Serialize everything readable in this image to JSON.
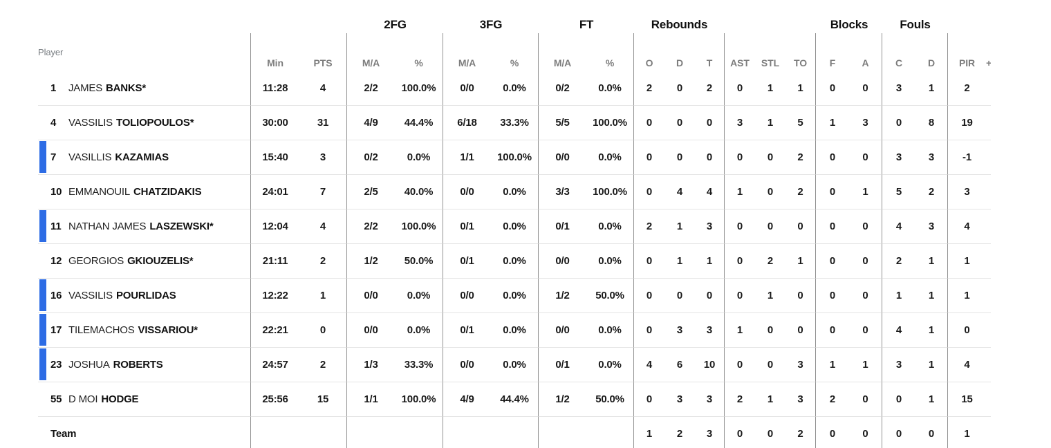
{
  "colors": {
    "active_bar": "#2d6ce5",
    "header_text": "#0f0f0f",
    "subheader_text": "#7d7d7d"
  },
  "header": {
    "player": "Player",
    "groups": {
      "fg2": "2FG",
      "fg3": "3FG",
      "ft": "FT",
      "reb": "Rebounds",
      "blk": "Blocks",
      "fls": "Fouls"
    },
    "sub": {
      "min": "Min",
      "pts": "PTS",
      "ma": "M/A",
      "pct": "%",
      "o": "O",
      "d": "D",
      "t": "T",
      "ast": "AST",
      "stl": "STL",
      "to": "TO",
      "f": "F",
      "a": "A",
      "c": "C",
      "d2": "D",
      "pir": "PIR",
      "pm": "+"
    }
  },
  "players": [
    {
      "num": "1",
      "first": "JAMES",
      "last": "BANKS*",
      "on_court": false,
      "min": "11:28",
      "pts": "4",
      "fg2": "2/2",
      "fg2p": "100.0%",
      "fg3": "0/0",
      "fg3p": "0.0%",
      "ft": "0/2",
      "ftp": "0.0%",
      "reb_o": "2",
      "reb_d": "0",
      "reb_t": "2",
      "ast": "0",
      "stl": "1",
      "to": "1",
      "blk_f": "0",
      "blk_a": "0",
      "foul_c": "3",
      "foul_d": "1",
      "pir": "2"
    },
    {
      "num": "4",
      "first": "VASSILIS",
      "last": "TOLIOPOULOS*",
      "on_court": false,
      "min": "30:00",
      "pts": "31",
      "fg2": "4/9",
      "fg2p": "44.4%",
      "fg3": "6/18",
      "fg3p": "33.3%",
      "ft": "5/5",
      "ftp": "100.0%",
      "reb_o": "0",
      "reb_d": "0",
      "reb_t": "0",
      "ast": "3",
      "stl": "1",
      "to": "5",
      "blk_f": "1",
      "blk_a": "3",
      "foul_c": "0",
      "foul_d": "8",
      "pir": "19"
    },
    {
      "num": "7",
      "first": "VASILLIS",
      "last": "KAZAMIAS",
      "on_court": true,
      "min": "15:40",
      "pts": "3",
      "fg2": "0/2",
      "fg2p": "0.0%",
      "fg3": "1/1",
      "fg3p": "100.0%",
      "ft": "0/0",
      "ftp": "0.0%",
      "reb_o": "0",
      "reb_d": "0",
      "reb_t": "0",
      "ast": "0",
      "stl": "0",
      "to": "2",
      "blk_f": "0",
      "blk_a": "0",
      "foul_c": "3",
      "foul_d": "3",
      "pir": "-1"
    },
    {
      "num": "10",
      "first": "EMMANOUIL",
      "last": "CHATZIDAKIS",
      "on_court": false,
      "min": "24:01",
      "pts": "7",
      "fg2": "2/5",
      "fg2p": "40.0%",
      "fg3": "0/0",
      "fg3p": "0.0%",
      "ft": "3/3",
      "ftp": "100.0%",
      "reb_o": "0",
      "reb_d": "4",
      "reb_t": "4",
      "ast": "1",
      "stl": "0",
      "to": "2",
      "blk_f": "0",
      "blk_a": "1",
      "foul_c": "5",
      "foul_d": "2",
      "pir": "3"
    },
    {
      "num": "11",
      "first": "NATHAN JAMES",
      "last": "LASZEWSKI*",
      "on_court": true,
      "min": "12:04",
      "pts": "4",
      "fg2": "2/2",
      "fg2p": "100.0%",
      "fg3": "0/1",
      "fg3p": "0.0%",
      "ft": "0/1",
      "ftp": "0.0%",
      "reb_o": "2",
      "reb_d": "1",
      "reb_t": "3",
      "ast": "0",
      "stl": "0",
      "to": "0",
      "blk_f": "0",
      "blk_a": "0",
      "foul_c": "4",
      "foul_d": "3",
      "pir": "4"
    },
    {
      "num": "12",
      "first": "GEORGIOS",
      "last": "GKIOUZELIS*",
      "on_court": false,
      "min": "21:11",
      "pts": "2",
      "fg2": "1/2",
      "fg2p": "50.0%",
      "fg3": "0/1",
      "fg3p": "0.0%",
      "ft": "0/0",
      "ftp": "0.0%",
      "reb_o": "0",
      "reb_d": "1",
      "reb_t": "1",
      "ast": "0",
      "stl": "2",
      "to": "1",
      "blk_f": "0",
      "blk_a": "0",
      "foul_c": "2",
      "foul_d": "1",
      "pir": "1"
    },
    {
      "num": "16",
      "first": "VASSILIS",
      "last": "POURLIDAS",
      "on_court": true,
      "min": "12:22",
      "pts": "1",
      "fg2": "0/0",
      "fg2p": "0.0%",
      "fg3": "0/0",
      "fg3p": "0.0%",
      "ft": "1/2",
      "ftp": "50.0%",
      "reb_o": "0",
      "reb_d": "0",
      "reb_t": "0",
      "ast": "0",
      "stl": "1",
      "to": "0",
      "blk_f": "0",
      "blk_a": "0",
      "foul_c": "1",
      "foul_d": "1",
      "pir": "1"
    },
    {
      "num": "17",
      "first": "TILEMACHOS",
      "last": "VISSARIOU*",
      "on_court": true,
      "min": "22:21",
      "pts": "0",
      "fg2": "0/0",
      "fg2p": "0.0%",
      "fg3": "0/1",
      "fg3p": "0.0%",
      "ft": "0/0",
      "ftp": "0.0%",
      "reb_o": "0",
      "reb_d": "3",
      "reb_t": "3",
      "ast": "1",
      "stl": "0",
      "to": "0",
      "blk_f": "0",
      "blk_a": "0",
      "foul_c": "4",
      "foul_d": "1",
      "pir": "0"
    },
    {
      "num": "23",
      "first": "JOSHUA",
      "last": "ROBERTS",
      "on_court": true,
      "min": "24:57",
      "pts": "2",
      "fg2": "1/3",
      "fg2p": "33.3%",
      "fg3": "0/0",
      "fg3p": "0.0%",
      "ft": "0/1",
      "ftp": "0.0%",
      "reb_o": "4",
      "reb_d": "6",
      "reb_t": "10",
      "ast": "0",
      "stl": "0",
      "to": "3",
      "blk_f": "1",
      "blk_a": "1",
      "foul_c": "3",
      "foul_d": "1",
      "pir": "4"
    },
    {
      "num": "55",
      "first": "D MOI",
      "last": "HODGE",
      "on_court": false,
      "min": "25:56",
      "pts": "15",
      "fg2": "1/1",
      "fg2p": "100.0%",
      "fg3": "4/9",
      "fg3p": "44.4%",
      "ft": "1/2",
      "ftp": "50.0%",
      "reb_o": "0",
      "reb_d": "3",
      "reb_t": "3",
      "ast": "2",
      "stl": "1",
      "to": "3",
      "blk_f": "2",
      "blk_a": "0",
      "foul_c": "0",
      "foul_d": "1",
      "pir": "15"
    }
  ],
  "team": {
    "label": "Team",
    "reb_o": "1",
    "reb_d": "2",
    "reb_t": "3",
    "ast": "0",
    "stl": "0",
    "to": "2",
    "blk_f": "0",
    "blk_a": "0",
    "foul_c": "0",
    "foul_d": "0",
    "pir": "1"
  }
}
